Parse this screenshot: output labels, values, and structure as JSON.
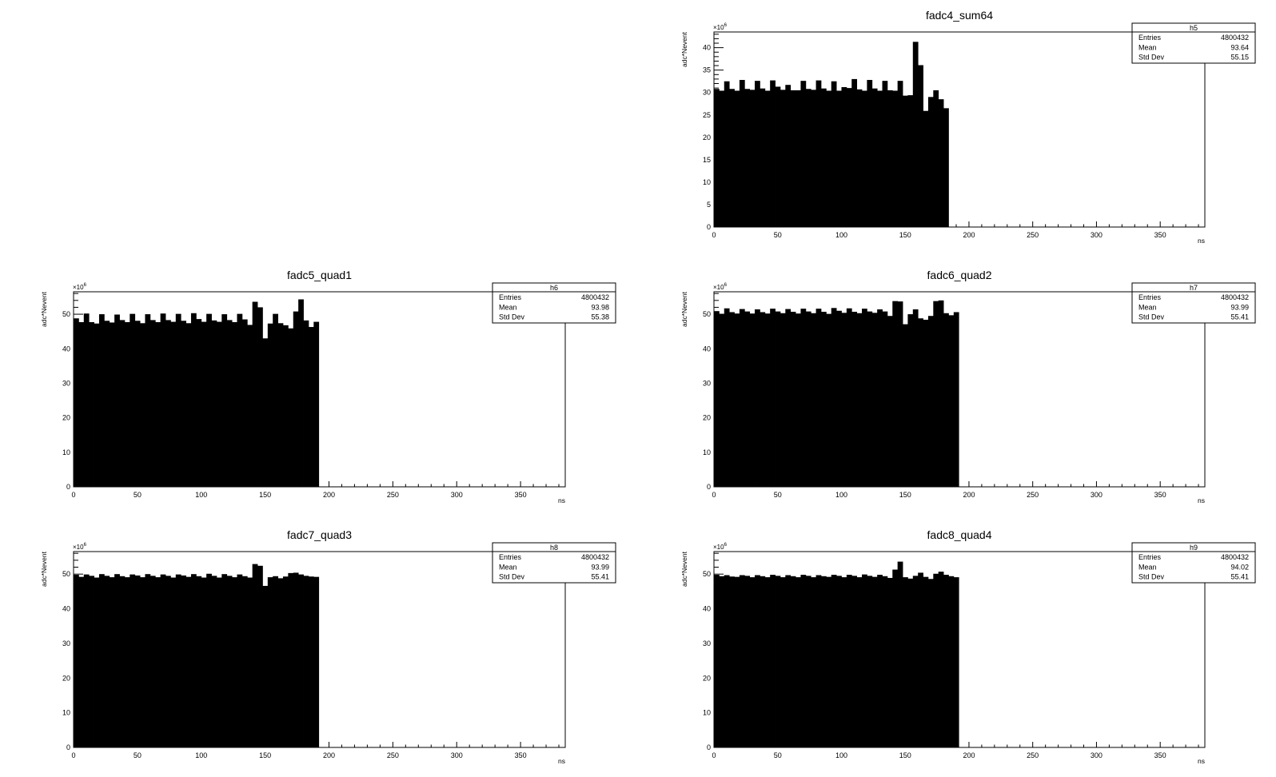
{
  "colors": {
    "fill": "#000000",
    "frame": "#000000",
    "background": "#ffffff"
  },
  "chart_data": [
    {
      "type": "bar",
      "title": "fadc4_sum64",
      "xlabel": "ns",
      "ylabel": "adc*Nevent",
      "xlim": [
        0,
        385
      ],
      "ylim": [
        0,
        43.5
      ],
      "bin_width": 4,
      "y_multiplier": "×10^6",
      "xticks": [
        0,
        50,
        100,
        150,
        200,
        250,
        300,
        350
      ],
      "yticks": [
        0,
        5,
        10,
        15,
        20,
        25,
        30,
        35,
        40
      ],
      "grid": false,
      "legend": "top-right",
      "stats": {
        "name": "h5",
        "entries": "4800432",
        "mean": "93.64",
        "std_dev": "55.15"
      },
      "values": [
        30.8,
        30.4,
        32.5,
        30.8,
        30.4,
        32.8,
        30.8,
        30.6,
        32.6,
        30.9,
        30.4,
        32.7,
        31.3,
        30.6,
        31.7,
        30.5,
        30.5,
        32.6,
        30.8,
        30.6,
        32.7,
        30.9,
        30.4,
        32.5,
        30.4,
        31.2,
        31.0,
        33.0,
        30.7,
        30.4,
        32.8,
        30.9,
        30.4,
        32.6,
        30.5,
        30.4,
        32.6,
        29.3,
        29.4,
        41.3,
        36.1,
        25.9,
        29.0,
        30.5,
        28.5,
        26.5
      ]
    },
    {
      "type": "bar",
      "title": "fadc5_quad1",
      "xlabel": "ns",
      "ylabel": "adc*Nevent",
      "xlim": [
        0,
        385
      ],
      "ylim": [
        0,
        56.5
      ],
      "bin_width": 4,
      "y_multiplier": "×10^6",
      "xticks": [
        0,
        50,
        100,
        150,
        200,
        250,
        300,
        350
      ],
      "yticks": [
        0,
        10,
        20,
        30,
        40,
        50
      ],
      "grid": false,
      "legend": "top-right",
      "stats": {
        "name": "h6",
        "entries": "4800432",
        "mean": "93.98",
        "std_dev": "55.38"
      },
      "values": [
        48.8,
        47.7,
        50.2,
        47.7,
        47.3,
        50.0,
        48.1,
        47.6,
        49.9,
        48.3,
        47.7,
        50.1,
        48.1,
        47.4,
        50.0,
        48.3,
        47.7,
        50.2,
        48.3,
        47.8,
        50.1,
        48.1,
        47.4,
        50.3,
        48.6,
        47.8,
        50.1,
        48.2,
        47.8,
        50.0,
        48.3,
        47.7,
        50.1,
        48.5,
        46.9,
        53.6,
        52.0,
        43.0,
        47.3,
        50.1,
        47.4,
        46.8,
        45.9,
        50.8,
        54.3,
        48.2,
        46.3,
        47.8
      ]
    },
    {
      "type": "bar",
      "title": "fadc6_quad2",
      "xlabel": "ns",
      "ylabel": "adc*Nevent",
      "xlim": [
        0,
        385
      ],
      "ylim": [
        0,
        56.5
      ],
      "bin_width": 4,
      "y_multiplier": "×10^6",
      "xticks": [
        0,
        50,
        100,
        150,
        200,
        250,
        300,
        350
      ],
      "yticks": [
        0,
        10,
        20,
        30,
        40,
        50
      ],
      "grid": false,
      "legend": "top-right",
      "stats": {
        "name": "h7",
        "entries": "4800432",
        "mean": "93.99",
        "std_dev": "55.41"
      },
      "values": [
        50.9,
        50.1,
        51.7,
        50.6,
        50.2,
        51.5,
        50.8,
        50.2,
        51.4,
        50.6,
        50.2,
        51.6,
        50.8,
        50.3,
        51.5,
        50.7,
        50.2,
        51.6,
        50.8,
        50.3,
        51.6,
        50.7,
        50.1,
        51.8,
        51.0,
        50.4,
        51.7,
        50.7,
        50.3,
        51.6,
        50.8,
        50.4,
        51.4,
        50.8,
        49.5,
        53.8,
        53.7,
        47.1,
        50.0,
        51.4,
        48.8,
        48.4,
        49.5,
        53.8,
        54.0,
        50.3,
        49.7,
        50.6
      ]
    },
    {
      "type": "bar",
      "title": "fadc7_quad3",
      "xlabel": "ns",
      "ylabel": "adc*Nevent",
      "xlim": [
        0,
        385
      ],
      "ylim": [
        0,
        56.5
      ],
      "bin_width": 4,
      "y_multiplier": "×10^6",
      "xticks": [
        0,
        50,
        100,
        150,
        200,
        250,
        300,
        350
      ],
      "yticks": [
        0,
        10,
        20,
        30,
        40,
        50
      ],
      "grid": false,
      "legend": "top-right",
      "stats": {
        "name": "h8",
        "entries": "4800432",
        "mean": "93.99",
        "std_dev": "55.41"
      },
      "values": [
        49.8,
        49.2,
        49.9,
        49.5,
        49.0,
        50.0,
        49.5,
        49.1,
        50.0,
        49.4,
        49.1,
        49.9,
        49.6,
        49.1,
        50.0,
        49.5,
        49.1,
        49.9,
        49.5,
        49.0,
        49.9,
        49.6,
        49.2,
        50.0,
        49.4,
        49.0,
        50.1,
        49.5,
        49.0,
        50.0,
        49.5,
        49.1,
        49.9,
        49.4,
        49.0,
        52.9,
        52.4,
        46.6,
        49.1,
        49.4,
        48.8,
        49.3,
        50.3,
        50.4,
        49.9,
        49.5,
        49.3,
        49.2
      ]
    },
    {
      "type": "bar",
      "title": "fadc8_quad4",
      "xlabel": "ns",
      "ylabel": "adc*Nevent",
      "xlim": [
        0,
        385
      ],
      "ylim": [
        0,
        56.5
      ],
      "bin_width": 4,
      "y_multiplier": "×10^6",
      "xticks": [
        0,
        50,
        100,
        150,
        200,
        250,
        300,
        350
      ],
      "yticks": [
        0,
        10,
        20,
        30,
        40,
        50
      ],
      "grid": false,
      "legend": "top-right",
      "stats": {
        "name": "h9",
        "entries": "4800432",
        "mean": "94.02",
        "std_dev": "55.41"
      },
      "values": [
        49.8,
        49.4,
        49.7,
        49.3,
        49.2,
        49.7,
        49.5,
        49.1,
        49.7,
        49.4,
        49.1,
        49.8,
        49.5,
        49.1,
        49.7,
        49.4,
        49.1,
        49.8,
        49.5,
        49.1,
        49.7,
        49.4,
        49.2,
        49.8,
        49.5,
        49.1,
        49.8,
        49.5,
        49.1,
        49.9,
        49.5,
        49.2,
        49.8,
        49.4,
        48.9,
        51.3,
        53.6,
        49.1,
        48.7,
        49.5,
        50.4,
        49.2,
        48.6,
        50.1,
        50.7,
        49.8,
        49.4,
        49.1
      ]
    }
  ]
}
